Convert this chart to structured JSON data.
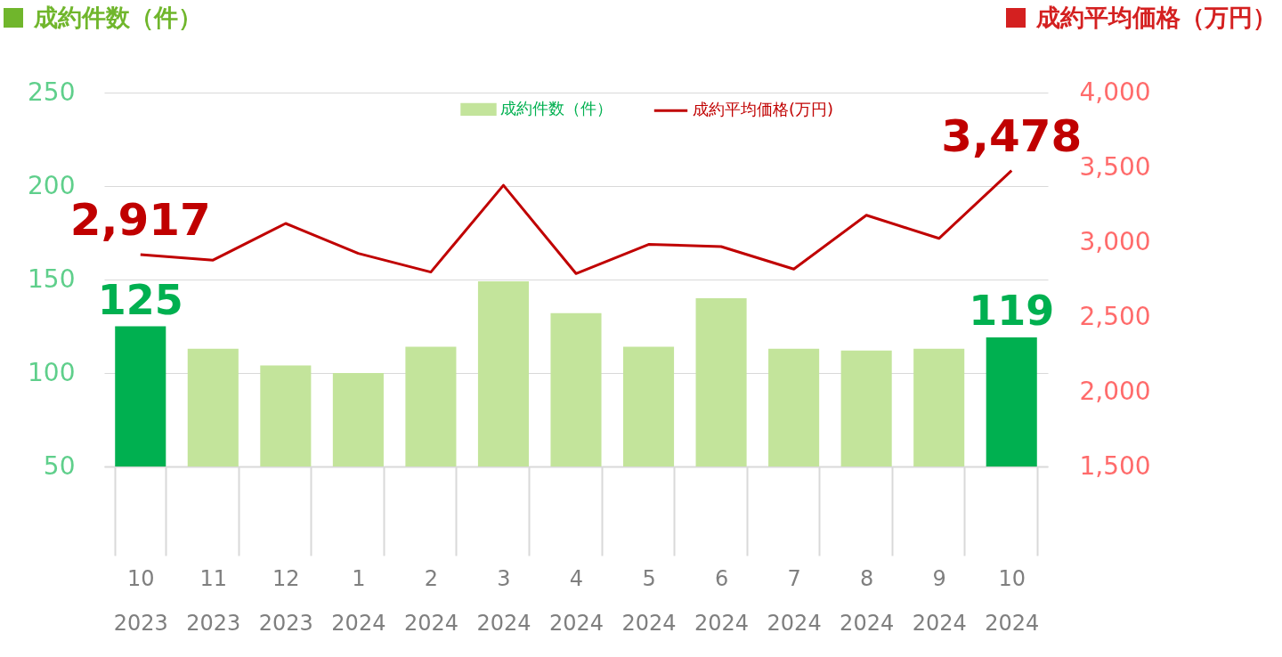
{
  "chart_data": {
    "type": "bar",
    "ylabel": "成約件数（件）",
    "y2label": "成約平均価格（万円）",
    "categories": [
      "10\n2023",
      "11\n2023",
      "12\n2023",
      "1\n2024",
      "2\n2024",
      "3\n2024",
      "4\n2024",
      "5\n2024",
      "6\n2024",
      "7\n2024",
      "8\n2024",
      "9\n2024",
      "10\n2024"
    ],
    "series": [
      {
        "name": "成約件数（件）",
        "color": "#c3e49b",
        "colors": [
          "#00b050",
          "#c3e49b",
          "#c3e49b",
          "#c3e49b",
          "#c3e49b",
          "#c3e49b",
          "#c3e49b",
          "#c3e49b",
          "#c3e49b",
          "#c3e49b",
          "#c3e49b",
          "#c3e49b",
          "#00b050"
        ],
        "values": [
          125,
          113,
          104,
          100,
          114,
          149,
          132,
          114,
          140,
          113,
          112,
          113,
          119
        ],
        "value_labels": [
          "125",
          null,
          null,
          null,
          null,
          null,
          null,
          null,
          null,
          null,
          null,
          null,
          "119"
        ]
      },
      {
        "name": "成約平均価格(万円)",
        "type": "line",
        "axis": "y2",
        "color": "#c00000",
        "values": [
          2917,
          2880,
          3125,
          2925,
          2800,
          3380,
          2790,
          2985,
          2970,
          2820,
          3180,
          3025,
          3478
        ],
        "value_labels": [
          "2,917",
          null,
          null,
          null,
          null,
          null,
          null,
          null,
          null,
          null,
          null,
          null,
          "3,478"
        ]
      }
    ],
    "ylim": [
      50,
      250
    ],
    "yticks": [
      50,
      100,
      150,
      200,
      250
    ],
    "y2lim": [
      1500,
      4000
    ],
    "y2ticks": [
      {
        "value": 1500,
        "label": "1,500"
      },
      {
        "value": 2000,
        "label": "2,000"
      },
      {
        "value": 2500,
        "label": "2,500"
      },
      {
        "value": 3000,
        "label": "3,000"
      },
      {
        "value": 3500,
        "label": "3,500"
      },
      {
        "value": 4000,
        "label": "4,000"
      }
    ],
    "grid": "y",
    "legend": "top"
  }
}
